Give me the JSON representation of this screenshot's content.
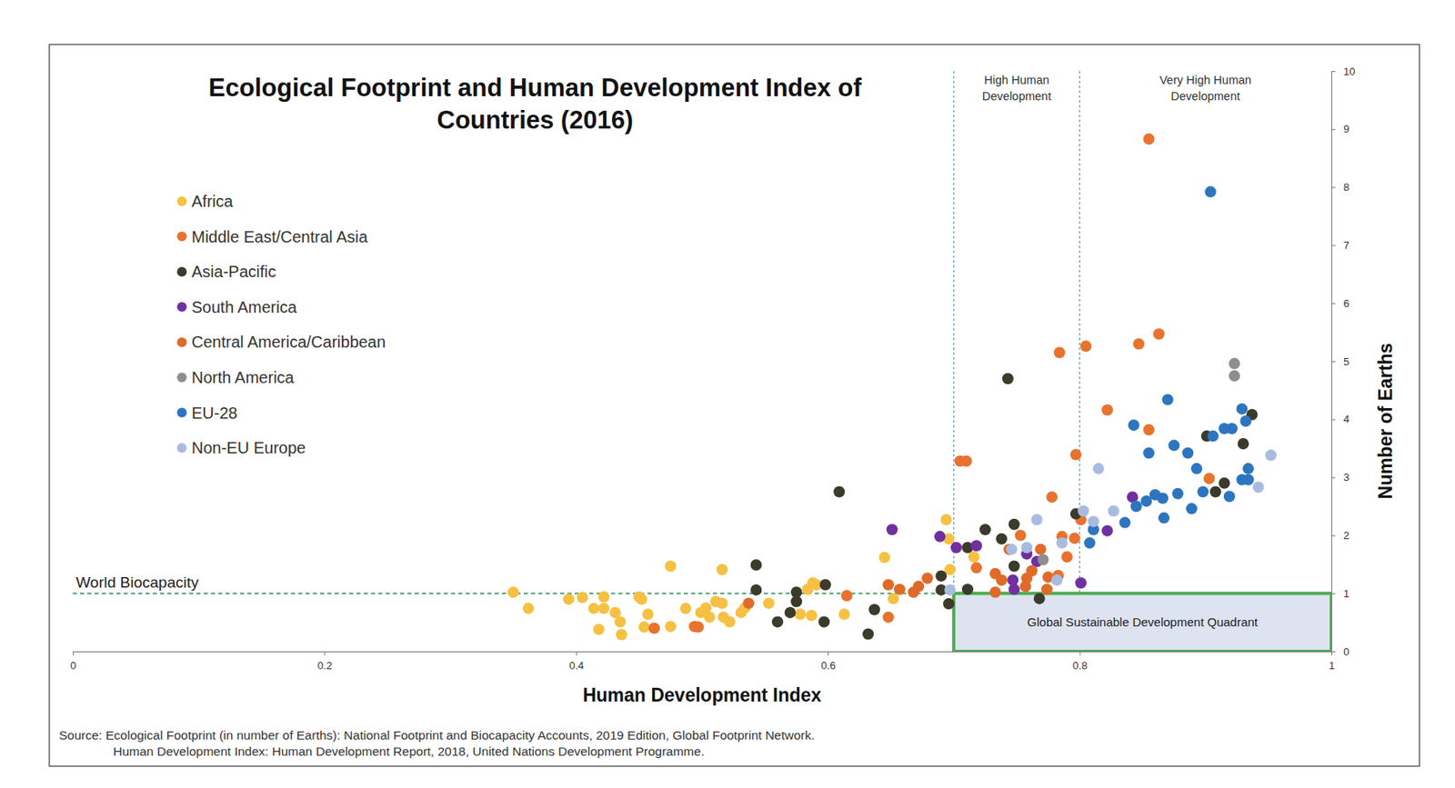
{
  "chart_data": {
    "type": "scatter",
    "title": "Ecological Footprint and Human Development Index of\nCountries (2016)",
    "x_label": "Human Development Index",
    "y_label": "Number of Earths",
    "xlim": [
      0,
      1
    ],
    "xticks": [
      0,
      0.2,
      0.4,
      0.6,
      0.8,
      1
    ],
    "ylim": [
      0,
      10
    ],
    "yticks": [
      0,
      1,
      2,
      3,
      4,
      5,
      6,
      7,
      8,
      9,
      10
    ],
    "grid": false,
    "legend": "top-left",
    "marker": "circle",
    "annotations": [
      {
        "text": "World Biocapacity",
        "y": 1
      },
      {
        "text": "High Human\nDevelopment",
        "x": 0.7
      },
      {
        "text": "Very High Human\nDevelopment",
        "x": 0.8
      },
      {
        "text": "Global Sustainable Development Quadrant",
        "x": [
          0.7,
          1
        ],
        "y": [
          0,
          1
        ]
      }
    ],
    "source": [
      "Source: Ecological Footprint (in number of Earths): National Footprint and Biocapacity Accounts, 2019 Edition, Global Footprint Network.",
      "Human Development Index: Human Development Report, 2018, United Nations Development Programme."
    ],
    "series": [
      {
        "name": "Africa",
        "color": "#F6C142",
        "x": [
          0.35,
          0.362,
          0.394,
          0.405,
          0.414,
          0.418,
          0.422,
          0.422,
          0.431,
          0.435,
          0.436,
          0.45,
          0.452,
          0.454,
          0.457,
          0.475,
          0.475,
          0.487,
          0.495,
          0.499,
          0.503,
          0.506,
          0.511,
          0.516,
          0.516,
          0.517,
          0.522,
          0.531,
          0.534,
          0.553,
          0.584,
          0.588,
          0.591,
          0.578,
          0.587,
          0.613,
          0.645,
          0.652,
          0.694,
          0.696,
          0.697,
          0.716
        ],
        "values": [
          1.02,
          0.74,
          0.9,
          0.93,
          0.74,
          0.38,
          0.94,
          0.74,
          0.67,
          0.51,
          0.29,
          0.94,
          0.9,
          0.42,
          0.64,
          1.47,
          0.43,
          0.74,
          0.43,
          0.67,
          0.75,
          0.59,
          0.86,
          1.41,
          0.83,
          0.59,
          0.51,
          0.67,
          0.75,
          0.83,
          1.07,
          1.18,
          1.15,
          0.64,
          0.62,
          0.64,
          1.62,
          0.91,
          2.27,
          1.94,
          1.41,
          1.63
        ]
      },
      {
        "name": "Middle East/Central Asia",
        "color": "#E8722E",
        "x": [
          0.855,
          0.784,
          0.805,
          0.847,
          0.863,
          0.822,
          0.855,
          0.797,
          0.705,
          0.71,
          0.778,
          0.903,
          0.801,
          0.753,
          0.786,
          0.796,
          0.79,
          0.718,
          0.783,
          0.615,
          0.648,
          0.494,
          0.497,
          0.462
        ],
        "values": [
          8.83,
          5.15,
          5.26,
          5.3,
          5.47,
          4.16,
          3.82,
          3.39,
          3.28,
          3.28,
          2.66,
          2.98,
          2.27,
          2.0,
          1.98,
          1.95,
          1.63,
          1.44,
          1.31,
          0.96,
          0.59,
          0.43,
          0.42,
          0.4
        ]
      },
      {
        "name": "Asia-Pacific",
        "color": "#3B3A2B",
        "x": [
          0.743,
          0.609,
          0.543,
          0.543,
          0.575,
          0.575,
          0.598,
          0.56,
          0.57,
          0.597,
          0.632,
          0.637,
          0.69,
          0.69,
          0.696,
          0.711,
          0.725,
          0.738,
          0.748,
          0.748,
          0.768,
          0.797,
          0.901,
          0.908,
          0.915,
          0.93,
          0.937,
          0.711
        ],
        "values": [
          4.7,
          2.75,
          1.49,
          1.06,
          1.02,
          0.86,
          1.15,
          0.51,
          0.67,
          0.51,
          0.3,
          0.72,
          1.3,
          1.06,
          0.82,
          1.79,
          2.1,
          1.94,
          2.19,
          1.47,
          0.91,
          2.37,
          3.71,
          2.75,
          2.9,
          3.58,
          4.08,
          1.07
        ]
      },
      {
        "name": "South America",
        "color": "#7030A0",
        "x": [
          0.651,
          0.689,
          0.702,
          0.718,
          0.747,
          0.748,
          0.758,
          0.766,
          0.801,
          0.822,
          0.842
        ],
        "values": [
          2.1,
          1.98,
          1.79,
          1.82,
          1.23,
          1.07,
          1.68,
          1.55,
          1.18,
          2.08,
          2.66
        ]
      },
      {
        "name": "Central America/Caribbean",
        "color": "#E06A28",
        "x": [
          0.744,
          0.769,
          0.733,
          0.775,
          0.758,
          0.738,
          0.757,
          0.774,
          0.679,
          0.648,
          0.657,
          0.668,
          0.672,
          0.537,
          0.733,
          0.762
        ],
        "values": [
          1.76,
          1.76,
          1.34,
          1.28,
          1.26,
          1.23,
          1.12,
          1.07,
          1.26,
          1.15,
          1.07,
          1.02,
          1.12,
          0.83,
          1.02,
          1.39
        ]
      },
      {
        "name": "North America",
        "color": "#8E8E8E",
        "x": [
          0.923,
          0.923,
          0.771
        ],
        "values": [
          4.96,
          4.75,
          1.58
        ]
      },
      {
        "name": "EU-28",
        "color": "#2E75C0",
        "x": [
          0.904,
          0.87,
          0.929,
          0.843,
          0.932,
          0.906,
          0.915,
          0.921,
          0.855,
          0.875,
          0.886,
          0.893,
          0.934,
          0.934,
          0.929,
          0.898,
          0.878,
          0.866,
          0.86,
          0.853,
          0.845,
          0.836,
          0.867,
          0.889,
          0.919,
          0.808,
          0.811
        ],
        "values": [
          7.92,
          4.34,
          4.18,
          3.9,
          3.97,
          3.71,
          3.84,
          3.84,
          3.42,
          3.55,
          3.42,
          3.15,
          3.15,
          2.96,
          2.96,
          2.75,
          2.72,
          2.64,
          2.7,
          2.59,
          2.5,
          2.22,
          2.3,
          2.46,
          2.67,
          1.87,
          2.1
        ]
      },
      {
        "name": "Non-EU Europe",
        "color": "#A9BCE0",
        "x": [
          0.952,
          0.942,
          0.815,
          0.827,
          0.803,
          0.811,
          0.766,
          0.746,
          0.758,
          0.782,
          0.786,
          0.697
        ],
        "values": [
          3.38,
          2.83,
          3.15,
          2.42,
          2.42,
          2.24,
          2.27,
          1.76,
          1.79,
          1.23,
          1.87,
          1.06
        ]
      }
    ]
  }
}
